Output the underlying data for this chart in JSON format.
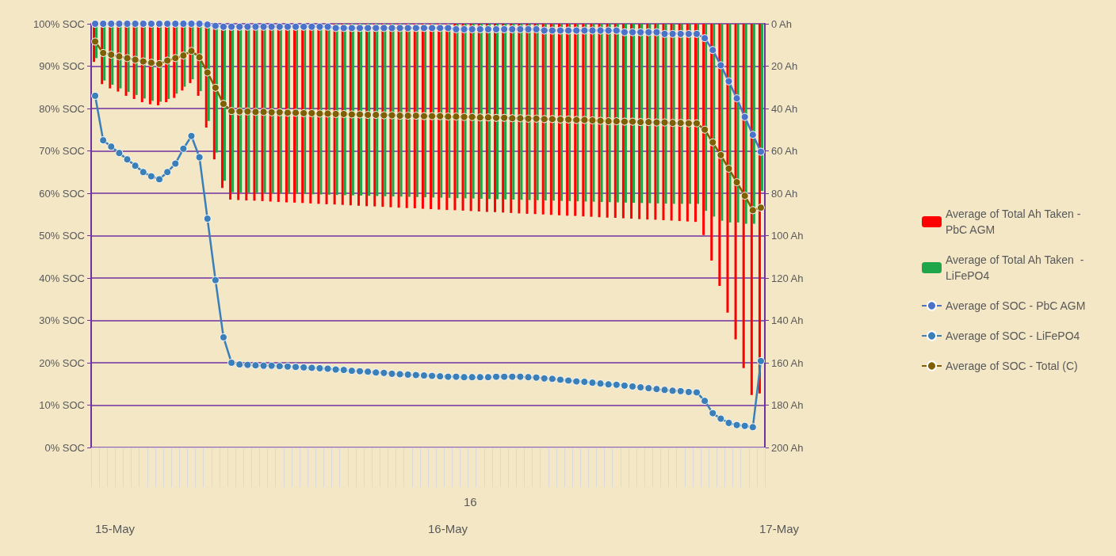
{
  "chart_data": {
    "type": "line",
    "categories": [
      null,
      null,
      null,
      null,
      null,
      null,
      null,
      null,
      null,
      null,
      null,
      null,
      null,
      null,
      null,
      null,
      null,
      null,
      null,
      null,
      null,
      null,
      null,
      null,
      null,
      null,
      null,
      null,
      null,
      null,
      null,
      null,
      null,
      null,
      null,
      null,
      null,
      null,
      null,
      null,
      null,
      null,
      null,
      null,
      null,
      null,
      null,
      null,
      null,
      null,
      null,
      null,
      null,
      null,
      null,
      null,
      null,
      null,
      null,
      null,
      null,
      null,
      null,
      null,
      null,
      null,
      null,
      null,
      null,
      null,
      null,
      null,
      null,
      null,
      null,
      null,
      null,
      null,
      null,
      null,
      null,
      null,
      null,
      null
    ],
    "series": [
      {
        "name": "Average of Total Ah Taken - PbC AGM",
        "type": "bar",
        "axis": "y2",
        "color": "#ff0000",
        "values": [
          18,
          28.5,
          30.5,
          32,
          34,
          35.5,
          37,
          38,
          38.5,
          37,
          35,
          31.5,
          28,
          34,
          49,
          64,
          77.5,
          83,
          83.2,
          83.4,
          83.5,
          83.7,
          83.9,
          84.1,
          84.3,
          84.4,
          84.6,
          84.8,
          85,
          85.2,
          85.3,
          85.5,
          85.7,
          85.9,
          86.1,
          86.2,
          86.4,
          86.6,
          86.8,
          87,
          87.1,
          87.3,
          87.5,
          87.7,
          87.9,
          88,
          88.2,
          88.4,
          88.6,
          88.8,
          88.9,
          89.1,
          89.3,
          89.5,
          89.7,
          89.8,
          90,
          90.2,
          90.4,
          90.6,
          90.7,
          90.9,
          91.1,
          91.3,
          91.5,
          91.6,
          91.8,
          92,
          92.2,
          92.4,
          92.5,
          92.7,
          92.9,
          93.1,
          93.3,
          93.5,
          99.7,
          111.8,
          123.7,
          136.4,
          149,
          162.5,
          175.2,
          174.5
        ]
      },
      {
        "name": "Average of Total Ah Taken  - LiFePO4",
        "type": "bar",
        "axis": "y2",
        "color": "#1fa64a",
        "values": [
          16.2,
          26.8,
          28.8,
          30.5,
          32.2,
          33.6,
          35.3,
          36.4,
          36.8,
          35.5,
          33,
          29.7,
          26.2,
          31.8,
          45.9,
          60.8,
          74.1,
          79.5,
          79.6,
          79.7,
          79.8,
          79.9,
          80,
          80.1,
          80.2,
          80.3,
          80.4,
          80.5,
          80.6,
          80.7,
          80.8,
          80.9,
          81,
          81.1,
          81.2,
          81.3,
          81.4,
          81.5,
          81.6,
          81.7,
          81.8,
          81.9,
          82,
          82.1,
          82.2,
          82.3,
          82.4,
          82.5,
          82.6,
          82.7,
          82.8,
          82.9,
          83,
          83.1,
          83.2,
          83.3,
          83.4,
          83.5,
          83.6,
          83.7,
          83.8,
          83.9,
          84,
          84.1,
          84.2,
          84.3,
          84.4,
          84.5,
          84.6,
          84.7,
          84.8,
          84.9,
          85,
          85,
          85,
          85,
          88.3,
          91,
          93,
          93.8,
          93.8,
          94.4,
          94.4,
          78.9
        ]
      },
      {
        "name": "Average of SOC - PbC AGM",
        "color": "#4a72c8",
        "values": [
          100,
          100,
          100,
          100,
          100,
          100,
          100,
          100,
          100,
          100,
          100,
          100,
          100,
          100,
          99.8,
          99.5,
          99.3,
          99.3,
          99.3,
          99.3,
          99.3,
          99.3,
          99.3,
          99.3,
          99.3,
          99.3,
          99.3,
          99.3,
          99.3,
          99.3,
          99,
          99,
          99,
          99,
          99,
          99,
          99,
          99,
          99,
          99,
          99,
          99,
          99,
          99,
          99,
          98.7,
          98.7,
          98.7,
          98.7,
          98.7,
          98.7,
          98.7,
          98.7,
          98.7,
          98.7,
          98.7,
          98.4,
          98.4,
          98.4,
          98.4,
          98.4,
          98.4,
          98.4,
          98.4,
          98.4,
          98.4,
          98,
          98,
          98,
          98,
          98,
          97.6,
          97.6,
          97.6,
          97.6,
          97.6,
          96.6,
          93.8,
          90.2,
          86.4,
          82.4,
          78,
          73.8,
          69.8
        ]
      },
      {
        "name": "Average of SOC - LiFePO4",
        "color": "#3a7fb8",
        "values": [
          83,
          72.5,
          71,
          69.5,
          68,
          66.5,
          65,
          64,
          63.3,
          65,
          67,
          70.5,
          73.5,
          68.5,
          54,
          39.5,
          26,
          20,
          19.6,
          19.5,
          19.4,
          19.3,
          19.3,
          19.2,
          19.1,
          19,
          18.9,
          18.8,
          18.7,
          18.6,
          18.4,
          18.3,
          18.1,
          18,
          17.9,
          17.7,
          17.6,
          17.4,
          17.3,
          17.2,
          17.1,
          17,
          16.9,
          16.8,
          16.7,
          16.7,
          16.6,
          16.6,
          16.6,
          16.6,
          16.7,
          16.7,
          16.7,
          16.7,
          16.6,
          16.5,
          16.3,
          16.2,
          16,
          15.8,
          15.6,
          15.5,
          15.3,
          15.1,
          14.9,
          14.8,
          14.6,
          14.4,
          14.2,
          14,
          13.8,
          13.6,
          13.4,
          13.3,
          13.1,
          13,
          11,
          8.1,
          6.8,
          5.8,
          5.3,
          5.1,
          4.8,
          20.4
        ]
      },
      {
        "name": "Average of SOC - Total (C)",
        "color": "#7f6000",
        "values": [
          95.8,
          93.1,
          92.7,
          92.3,
          91.9,
          91.5,
          91.1,
          90.8,
          90.5,
          91.3,
          91.9,
          92.5,
          93.6,
          92.1,
          88.5,
          84.9,
          81.1,
          79.4,
          79.3,
          79.3,
          79.2,
          79.2,
          79.1,
          79.1,
          79,
          79,
          78.9,
          78.9,
          78.8,
          78.8,
          78.7,
          78.7,
          78.6,
          78.6,
          78.5,
          78.5,
          78.4,
          78.4,
          78.3,
          78.3,
          78.3,
          78.2,
          78.2,
          78.2,
          78.1,
          78.1,
          78,
          78,
          77.9,
          77.9,
          77.8,
          77.8,
          77.7,
          77.7,
          77.6,
          77.6,
          77.5,
          77.5,
          77.4,
          77.4,
          77.3,
          77.3,
          77.2,
          77.1,
          77,
          77,
          76.9,
          76.9,
          76.8,
          76.8,
          76.7,
          76.7,
          76.6,
          76.6,
          76.5,
          76.5,
          75,
          72,
          69,
          65.8,
          62.6,
          59.4,
          56,
          56.6
        ]
      }
    ],
    "ylim": [
      0,
      100
    ],
    "yticks": [
      {
        "value": 0,
        "label": "0% SOC"
      },
      {
        "value": 10,
        "label": "10% SOC"
      },
      {
        "value": 20,
        "label": "20% SOC"
      },
      {
        "value": 30,
        "label": "30% SOC"
      },
      {
        "value": 40,
        "label": "40% SOC"
      },
      {
        "value": 50,
        "label": "50% SOC"
      },
      {
        "value": 60,
        "label": "60% SOC"
      },
      {
        "value": 70,
        "label": "70% SOC"
      },
      {
        "value": 80,
        "label": "80% SOC"
      },
      {
        "value": 90,
        "label": "90% SOC"
      },
      {
        "value": 100,
        "label": "100% SOC"
      }
    ],
    "y2lim": [
      200,
      0
    ],
    "y2ticks": [
      {
        "value": 0,
        "label": "0 Ah"
      },
      {
        "value": 20,
        "label": "20 Ah"
      },
      {
        "value": 40,
        "label": "40 Ah"
      },
      {
        "value": 60,
        "label": "60 Ah"
      },
      {
        "value": 80,
        "label": "80 Ah"
      },
      {
        "value": 100,
        "label": "100 Ah"
      },
      {
        "value": 120,
        "label": "120 Ah"
      },
      {
        "value": 140,
        "label": "140 Ah"
      },
      {
        "value": 160,
        "label": "160 Ah"
      },
      {
        "value": 180,
        "label": "180 Ah"
      },
      {
        "value": 200,
        "label": "200 Ah"
      }
    ],
    "annotations": [
      "16",
      "15-May",
      "16-May",
      "17-May"
    ],
    "grid": "y",
    "legend": "right",
    "marker": "circle"
  }
}
